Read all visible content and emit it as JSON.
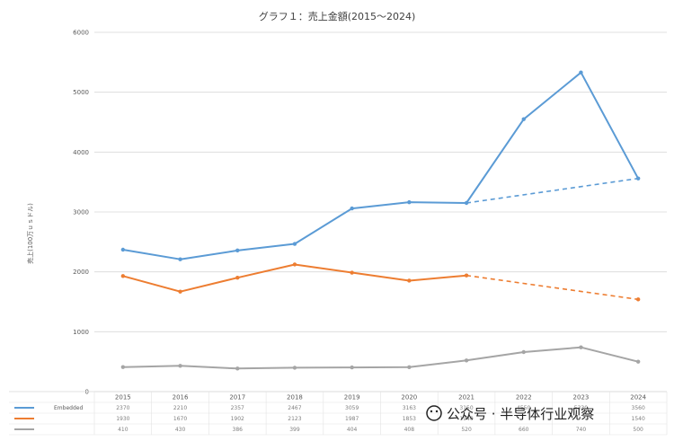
{
  "chart_data": {
    "type": "line",
    "title": "グラフ１：売上金額(2015～2024)",
    "xlabel": "",
    "ylabel": "売上(100万ｕｓドル)",
    "ylim": [
      0,
      6000
    ],
    "yticks": [
      "0",
      "1000",
      "2000",
      "3000",
      "4000",
      "5000",
      "6000"
    ],
    "x": [
      "2015",
      "2016",
      "2017",
      "2018",
      "2019",
      "2020",
      "2021",
      "2022",
      "2023",
      "2024"
    ],
    "grid": true,
    "legend": "data-table-bottom",
    "series": [
      {
        "name": "Embedded",
        "color": "#5b9bd5",
        "values": [
          2370,
          2210,
          2357,
          2467,
          3059,
          3163,
          3150,
          4550,
          5330,
          3560
        ],
        "table": [
          "2370",
          "2210",
          "2357",
          "2467",
          "3059",
          "3163",
          "3150",
          "4550",
          "5330",
          "3560"
        ],
        "trend": [
          3150,
          3560
        ]
      },
      {
        "name": "",
        "color": "#ed7d31",
        "values": [
          1930,
          1670,
          1902,
          2123,
          1987,
          1853,
          1940,
          null,
          null,
          1540
        ],
        "table": [
          "1930",
          "1670",
          "1902",
          "2123",
          "1987",
          "1853",
          "1940",
          "",
          "",
          "1540"
        ],
        "trend": [
          1940,
          1540
        ]
      },
      {
        "name": "",
        "color": "#a5a5a5",
        "values": [
          410,
          430,
          386,
          399,
          404,
          408,
          520,
          660,
          740,
          500
        ],
        "table": [
          "410",
          "430",
          "386",
          "399",
          "404",
          "408",
          "520",
          "660",
          "740",
          "500"
        ]
      }
    ],
    "watermark": "公众号 · 半导体行业观察"
  }
}
